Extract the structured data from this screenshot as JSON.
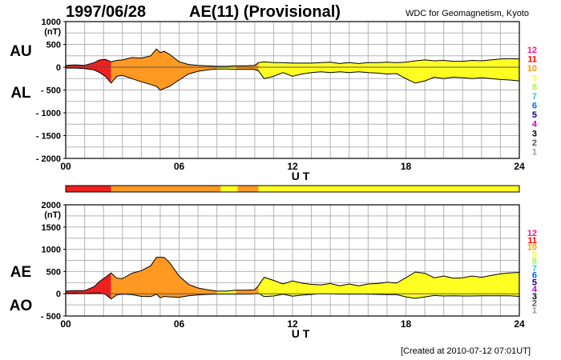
{
  "header": {
    "date": "1997/06/28",
    "title": "AE(11) (Provisional)",
    "source": "WDC for Geomagnetism, Kyoto"
  },
  "footer": "[Created at 2010-07-12 07:01UT]",
  "station_scale": {
    "labels": [
      "12",
      "11",
      "10",
      "9",
      "8",
      "7",
      "6",
      "5",
      "4",
      "3",
      "2",
      "1"
    ],
    "colors": [
      "#ff1493",
      "#ff0000",
      "#ff9900",
      "#ffff33",
      "#99ff33",
      "#33cccc",
      "#0066ff",
      "#000099",
      "#cc00cc",
      "#000000",
      "#555555",
      "#999999"
    ]
  },
  "station_bar": [
    {
      "start": 0,
      "end": 2.4,
      "stations": "11",
      "color": "#ee2020"
    },
    {
      "start": 2.4,
      "end": 8.2,
      "stations": "10",
      "color": "#ff9922"
    },
    {
      "start": 8.2,
      "end": 9.1,
      "stations": "9",
      "color": "#ffff22"
    },
    {
      "start": 9.1,
      "end": 10.2,
      "stations": "10",
      "color": "#ff9922"
    },
    {
      "start": 10.2,
      "end": 24,
      "stations": "9",
      "color": "#ffff22"
    }
  ],
  "chart_data": [
    {
      "type": "area",
      "title": "AU / AL",
      "labels": [
        "AU",
        "AL"
      ],
      "unit": "(nT)",
      "xlabel": "U T",
      "xlim": [
        0,
        24
      ],
      "ylim": [
        -2000,
        1000
      ],
      "yticks": [
        1000,
        500,
        0,
        -500,
        -1000,
        -1500,
        -2000
      ],
      "ytick_labels": [
        "1000",
        "500",
        "0",
        "- 500",
        "- 1000",
        "- 1500",
        "- 2000"
      ],
      "xticks": [
        0,
        6,
        12,
        18,
        24
      ],
      "xtick_labels": [
        "00",
        "06",
        "12",
        "18",
        "24"
      ],
      "grid": true,
      "series": [
        {
          "name": "AU",
          "x": [
            0,
            0.5,
            1,
            1.5,
            1.8,
            2.1,
            2.4,
            2.7,
            3,
            3.5,
            4,
            4.5,
            4.8,
            5,
            5.2,
            5.5,
            6,
            6.5,
            7,
            7.5,
            8,
            8.5,
            9,
            9.5,
            10,
            10.2,
            10.5,
            11,
            11.5,
            12,
            12.5,
            13,
            13.5,
            14,
            14.5,
            15,
            15.5,
            16,
            16.5,
            17,
            17.5,
            18,
            18.5,
            19,
            19.5,
            20,
            20.5,
            21,
            21.5,
            22,
            22.5,
            23,
            23.5,
            24
          ],
          "values": [
            40,
            50,
            40,
            100,
            160,
            170,
            120,
            150,
            160,
            210,
            200,
            250,
            400,
            320,
            350,
            280,
            120,
            60,
            40,
            30,
            20,
            20,
            30,
            30,
            40,
            100,
            120,
            100,
            100,
            90,
            90,
            90,
            100,
            110,
            80,
            100,
            80,
            100,
            100,
            110,
            100,
            110,
            140,
            160,
            140,
            150,
            130,
            130,
            150,
            140,
            160,
            180,
            190,
            180
          ]
        },
        {
          "name": "AL",
          "x": [
            0,
            0.5,
            1,
            1.5,
            1.8,
            2.1,
            2.4,
            2.7,
            3,
            3.5,
            4,
            4.5,
            4.8,
            5,
            5.2,
            5.5,
            6,
            6.5,
            7,
            7.5,
            8,
            8.5,
            9,
            9.5,
            10,
            10.2,
            10.5,
            11,
            11.5,
            12,
            12.5,
            13,
            13.5,
            14,
            14.5,
            15,
            15.5,
            16,
            16.5,
            17,
            17.5,
            18,
            18.5,
            19,
            19.5,
            20,
            20.5,
            21,
            21.5,
            22,
            22.5,
            23,
            23.5,
            24
          ],
          "values": [
            -20,
            -20,
            -30,
            -60,
            -120,
            -200,
            -350,
            -200,
            -180,
            -250,
            -320,
            -380,
            -420,
            -500,
            -470,
            -420,
            -280,
            -150,
            -90,
            -60,
            -40,
            -40,
            -50,
            -50,
            -50,
            -80,
            -250,
            -200,
            -120,
            -200,
            -150,
            -120,
            -100,
            -120,
            -100,
            -120,
            -100,
            -120,
            -130,
            -150,
            -140,
            -250,
            -350,
            -300,
            -220,
            -250,
            -220,
            -230,
            -250,
            -230,
            -250,
            -270,
            -280,
            -300
          ]
        }
      ]
    },
    {
      "type": "area",
      "title": "AE / AO",
      "labels": [
        "AE",
        "AO"
      ],
      "unit": "(nT)",
      "xlabel": "U T",
      "xlim": [
        0,
        24
      ],
      "ylim": [
        -500,
        2000
      ],
      "yticks": [
        2000,
        1500,
        1000,
        500,
        0,
        -500
      ],
      "ytick_labels": [
        "2000",
        "1500",
        "1000",
        "500",
        "0",
        "- 500"
      ],
      "xticks": [
        0,
        6,
        12,
        18,
        24
      ],
      "xtick_labels": [
        "00",
        "06",
        "12",
        "18",
        "24"
      ],
      "grid": true,
      "series": [
        {
          "name": "AE",
          "x": [
            0,
            0.5,
            1,
            1.5,
            1.8,
            2.1,
            2.4,
            2.7,
            3,
            3.5,
            4,
            4.5,
            4.8,
            5,
            5.2,
            5.5,
            6,
            6.5,
            7,
            7.5,
            8,
            8.5,
            9,
            9.5,
            10,
            10.2,
            10.5,
            11,
            11.5,
            12,
            12.5,
            13,
            13.5,
            14,
            14.5,
            15,
            15.5,
            16,
            16.5,
            17,
            17.5,
            18,
            18.5,
            19,
            19.5,
            20,
            20.5,
            21,
            21.5,
            22,
            22.5,
            23,
            23.5,
            24
          ],
          "values": [
            60,
            70,
            70,
            160,
            280,
            370,
            470,
            350,
            340,
            460,
            520,
            630,
            820,
            820,
            820,
            700,
            400,
            210,
            130,
            90,
            60,
            60,
            80,
            80,
            90,
            180,
            370,
            300,
            220,
            290,
            240,
            210,
            200,
            230,
            180,
            220,
            180,
            220,
            230,
            260,
            240,
            360,
            490,
            460,
            360,
            400,
            350,
            360,
            400,
            370,
            410,
            450,
            470,
            480
          ]
        },
        {
          "name": "AO",
          "x": [
            0,
            0.5,
            1,
            1.5,
            1.8,
            2.1,
            2.4,
            2.7,
            3,
            3.5,
            4,
            4.5,
            4.8,
            5,
            5.2,
            5.5,
            6,
            6.5,
            7,
            7.5,
            8,
            8.5,
            9,
            9.5,
            10,
            10.2,
            10.5,
            11,
            11.5,
            12,
            12.5,
            13,
            13.5,
            14,
            14.5,
            15,
            15.5,
            16,
            16.5,
            17,
            17.5,
            18,
            18.5,
            19,
            19.5,
            20,
            20.5,
            21,
            21.5,
            22,
            22.5,
            23,
            23.5,
            24
          ],
          "values": [
            10,
            15,
            5,
            20,
            20,
            -15,
            -115,
            -25,
            -10,
            -20,
            -60,
            -65,
            -10,
            -90,
            -60,
            -70,
            -80,
            -45,
            -25,
            -15,
            -10,
            -10,
            -10,
            -10,
            -5,
            10,
            -65,
            -50,
            -10,
            -55,
            -30,
            -15,
            0,
            -5,
            -10,
            -10,
            -10,
            -10,
            -15,
            -20,
            -20,
            -70,
            -105,
            -70,
            -40,
            -50,
            -45,
            -50,
            -50,
            -45,
            -45,
            -45,
            -45,
            -60
          ]
        }
      ]
    }
  ]
}
